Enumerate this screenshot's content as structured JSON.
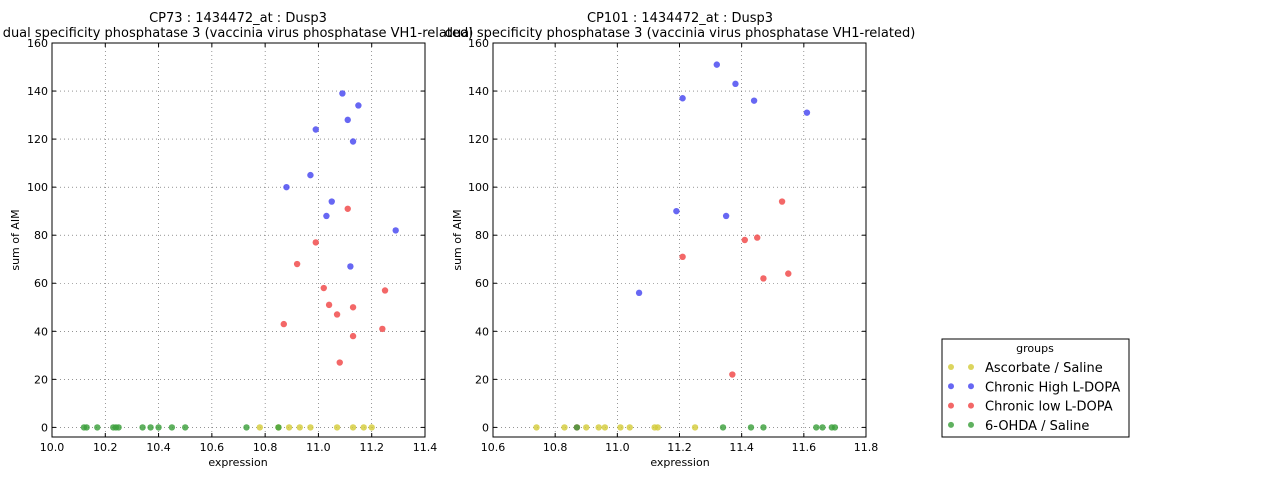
{
  "chart_data": [
    {
      "type": "scatter",
      "title_line1": "CP73 : 1434472_at : Dusp3",
      "title_line2": "dual specificity phosphatase 3 (vaccinia virus phosphatase VH1-related)",
      "xlabel": "expression",
      "ylabel": "sum of AIM",
      "xlim": [
        10.0,
        11.4
      ],
      "ylim": [
        -4,
        160
      ],
      "xticks": [
        "10.0",
        "10.2",
        "10.4",
        "10.6",
        "10.8",
        "11.0",
        "11.2",
        "11.4"
      ],
      "yticks": [
        "0",
        "20",
        "40",
        "60",
        "80",
        "100",
        "120",
        "140",
        "160"
      ],
      "grid": true,
      "series": [
        {
          "name": "Ascorbate / Saline",
          "points": [
            [
              10.78,
              0
            ],
            [
              10.85,
              0
            ],
            [
              10.89,
              0
            ],
            [
              10.93,
              0
            ],
            [
              10.97,
              0
            ],
            [
              11.07,
              0
            ],
            [
              11.13,
              0
            ],
            [
              11.17,
              0
            ],
            [
              11.2,
              0
            ]
          ]
        },
        {
          "name": "Chronic High L-DOPA",
          "points": [
            [
              10.88,
              100
            ],
            [
              10.97,
              105
            ],
            [
              10.99,
              124
            ],
            [
              11.03,
              88
            ],
            [
              11.05,
              94
            ],
            [
              11.09,
              139
            ],
            [
              11.11,
              128
            ],
            [
              11.13,
              119
            ],
            [
              11.15,
              134
            ],
            [
              11.12,
              67
            ],
            [
              11.29,
              82
            ]
          ]
        },
        {
          "name": "Chronic low L-DOPA",
          "points": [
            [
              10.87,
              43
            ],
            [
              10.92,
              68
            ],
            [
              10.99,
              77
            ],
            [
              11.02,
              58
            ],
            [
              11.04,
              51
            ],
            [
              11.07,
              47
            ],
            [
              11.08,
              27
            ],
            [
              11.11,
              91
            ],
            [
              11.13,
              50
            ],
            [
              11.13,
              38
            ],
            [
              11.24,
              41
            ],
            [
              11.25,
              57
            ]
          ]
        },
        {
          "name": "6-OHDA / Saline",
          "points": [
            [
              10.12,
              0
            ],
            [
              10.13,
              0
            ],
            [
              10.17,
              0
            ],
            [
              10.23,
              0
            ],
            [
              10.24,
              0
            ],
            [
              10.25,
              0
            ],
            [
              10.34,
              0
            ],
            [
              10.37,
              0
            ],
            [
              10.4,
              0
            ],
            [
              10.45,
              0
            ],
            [
              10.5,
              0
            ],
            [
              10.73,
              0
            ],
            [
              10.85,
              0
            ]
          ]
        }
      ]
    },
    {
      "type": "scatter",
      "title_line1": "CP101 : 1434472_at : Dusp3",
      "title_line2": "dual specificity phosphatase 3 (vaccinia virus phosphatase VH1-related)",
      "xlabel": "expression",
      "ylabel": "sum of AIM",
      "xlim": [
        10.6,
        11.8
      ],
      "ylim": [
        -4,
        160
      ],
      "xticks": [
        "10.6",
        "10.8",
        "11.0",
        "11.2",
        "11.4",
        "11.6",
        "11.8"
      ],
      "yticks": [
        "0",
        "20",
        "40",
        "60",
        "80",
        "100",
        "120",
        "140",
        "160"
      ],
      "grid": true,
      "series": [
        {
          "name": "Ascorbate / Saline",
          "points": [
            [
              10.74,
              0
            ],
            [
              10.83,
              0
            ],
            [
              10.9,
              0
            ],
            [
              10.94,
              0
            ],
            [
              10.96,
              0
            ],
            [
              11.01,
              0
            ],
            [
              11.04,
              0
            ],
            [
              11.12,
              0
            ],
            [
              11.13,
              0
            ],
            [
              11.25,
              0
            ]
          ]
        },
        {
          "name": "Chronic High L-DOPA",
          "points": [
            [
              11.07,
              56
            ],
            [
              11.19,
              90
            ],
            [
              11.21,
              137
            ],
            [
              11.32,
              151
            ],
            [
              11.35,
              88
            ],
            [
              11.38,
              143
            ],
            [
              11.44,
              136
            ],
            [
              11.61,
              131
            ]
          ]
        },
        {
          "name": "Chronic low L-DOPA",
          "points": [
            [
              10.87,
              0
            ],
            [
              11.21,
              71
            ],
            [
              11.37,
              22
            ],
            [
              11.41,
              78
            ],
            [
              11.45,
              79
            ],
            [
              11.47,
              62
            ],
            [
              11.53,
              94
            ],
            [
              11.55,
              64
            ]
          ]
        },
        {
          "name": "6-OHDA / Saline",
          "points": [
            [
              10.87,
              0
            ],
            [
              11.34,
              0
            ],
            [
              11.43,
              0
            ],
            [
              11.47,
              0
            ],
            [
              11.64,
              0
            ],
            [
              11.66,
              0
            ],
            [
              11.69,
              0
            ],
            [
              11.7,
              0
            ]
          ]
        }
      ]
    }
  ],
  "legend": {
    "title": "groups",
    "entries": [
      "Ascorbate / Saline",
      "Chronic High L-DOPA",
      "Chronic low L-DOPA",
      "6-OHDA / Saline"
    ],
    "colors": [
      "#d4cc3a",
      "#4545f0",
      "#f04545",
      "#3ca03c"
    ]
  }
}
